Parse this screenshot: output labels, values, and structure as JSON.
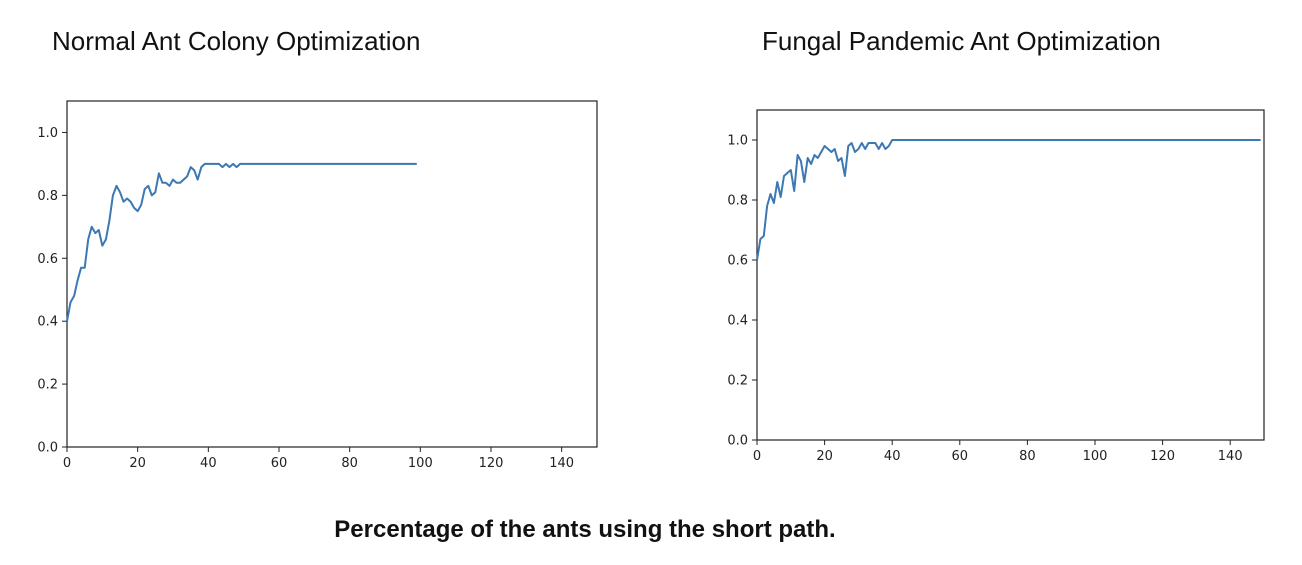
{
  "caption": "Percentage of the ants using the short path.",
  "chart_data": [
    {
      "type": "line",
      "title": "Normal Ant Colony Optimization",
      "xlabel": "",
      "ylabel": "",
      "xlim": [
        0,
        150
      ],
      "ylim": [
        0,
        1.1
      ],
      "xticks": [
        0,
        20,
        40,
        60,
        80,
        100,
        120,
        140
      ],
      "yticks": [
        0.0,
        0.2,
        0.4,
        0.6,
        0.8,
        1.0
      ],
      "grid": false,
      "color": "#3b78b4",
      "series": [
        {
          "x": [
            0,
            1,
            2,
            3,
            4,
            5,
            6,
            7,
            8,
            9,
            10,
            11,
            12,
            13,
            14,
            15,
            16,
            17,
            18,
            19,
            20,
            21,
            22,
            23,
            24,
            25,
            26,
            27,
            28,
            29,
            30,
            31,
            32,
            33,
            34,
            35,
            36,
            37,
            38,
            39,
            40,
            41,
            42,
            43,
            44,
            45,
            46,
            47,
            48,
            49,
            50,
            60,
            70,
            80,
            90,
            99
          ],
          "values": [
            0.4,
            0.46,
            0.48,
            0.53,
            0.57,
            0.57,
            0.66,
            0.7,
            0.68,
            0.69,
            0.64,
            0.66,
            0.72,
            0.8,
            0.83,
            0.81,
            0.78,
            0.79,
            0.78,
            0.76,
            0.75,
            0.77,
            0.82,
            0.83,
            0.8,
            0.81,
            0.87,
            0.84,
            0.84,
            0.83,
            0.85,
            0.84,
            0.84,
            0.85,
            0.86,
            0.89,
            0.88,
            0.85,
            0.89,
            0.9,
            0.9,
            0.9,
            0.9,
            0.9,
            0.89,
            0.9,
            0.89,
            0.9,
            0.89,
            0.9,
            0.9,
            0.9,
            0.9,
            0.9,
            0.9,
            0.9
          ]
        }
      ]
    },
    {
      "type": "line",
      "title": "Fungal Pandemic Ant Optimization",
      "xlabel": "",
      "ylabel": "",
      "xlim": [
        0,
        150
      ],
      "ylim": [
        0,
        1.1
      ],
      "xticks": [
        0,
        20,
        40,
        60,
        80,
        100,
        120,
        140
      ],
      "yticks": [
        0.0,
        0.2,
        0.4,
        0.6,
        0.8,
        1.0
      ],
      "grid": false,
      "color": "#3b78b4",
      "series": [
        {
          "x": [
            0,
            1,
            2,
            3,
            4,
            5,
            6,
            7,
            8,
            9,
            10,
            11,
            12,
            13,
            14,
            15,
            16,
            17,
            18,
            19,
            20,
            21,
            22,
            23,
            24,
            25,
            26,
            27,
            28,
            29,
            30,
            31,
            32,
            33,
            34,
            35,
            36,
            37,
            38,
            39,
            40,
            41,
            42,
            43,
            44,
            50,
            60,
            80,
            100,
            120,
            149
          ],
          "values": [
            0.6,
            0.67,
            0.68,
            0.78,
            0.82,
            0.79,
            0.86,
            0.81,
            0.88,
            0.89,
            0.9,
            0.83,
            0.95,
            0.93,
            0.86,
            0.94,
            0.92,
            0.95,
            0.94,
            0.96,
            0.98,
            0.97,
            0.96,
            0.97,
            0.93,
            0.94,
            0.88,
            0.98,
            0.99,
            0.96,
            0.97,
            0.99,
            0.97,
            0.99,
            0.99,
            0.99,
            0.97,
            0.99,
            0.97,
            0.98,
            1.0,
            1.0,
            1.0,
            1.0,
            1.0,
            1.0,
            1.0,
            1.0,
            1.0,
            1.0,
            1.0
          ]
        }
      ]
    }
  ]
}
